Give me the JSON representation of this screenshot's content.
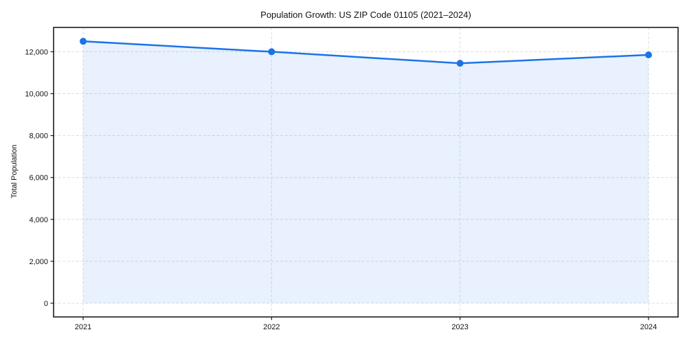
{
  "figure": {
    "background": "#ffffff"
  },
  "chart_data": {
    "type": "area",
    "title": "Population Growth: US ZIP Code 01105 (2021–2024)",
    "xlabel": "",
    "ylabel": "Total Population",
    "categories": [
      "2021",
      "2022",
      "2023",
      "2024"
    ],
    "series": [
      {
        "name": "Total Population",
        "values": [
          12500,
          12000,
          11450,
          11850
        ]
      }
    ],
    "yticks": [
      0,
      2000,
      4000,
      6000,
      8000,
      10000,
      12000
    ],
    "ytick_labels": [
      "0",
      "2,000",
      "4,000",
      "6,000",
      "8,000",
      "10,000",
      "12,000"
    ],
    "ylim": [
      -655,
      13160
    ],
    "grid": true,
    "grid_style": "dashed",
    "legend": "none",
    "marker": "circle",
    "colors": {
      "line": "#1a73e8",
      "marker": "#1a73e8",
      "fill": "rgba(26,115,232,0.10)",
      "grid": "#dcdcdc",
      "spine": "#1a1a1a",
      "text": "#111111"
    }
  }
}
